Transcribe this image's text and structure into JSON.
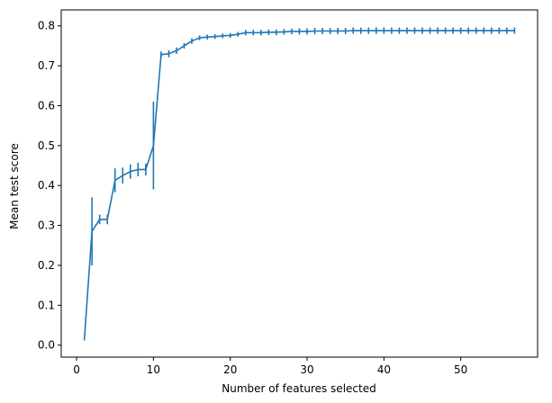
{
  "chart_data": {
    "type": "line",
    "title": "",
    "xlabel": "Number of features selected",
    "ylabel": "Mean test score",
    "xlim": [
      -2,
      60
    ],
    "ylim": [
      -0.03,
      0.84
    ],
    "grid": false,
    "x_ticks": [
      0,
      10,
      20,
      30,
      40,
      50
    ],
    "y_ticks": [
      0.0,
      0.1,
      0.2,
      0.3,
      0.4,
      0.5,
      0.6,
      0.7,
      0.8
    ],
    "color": "#1f77b4",
    "series": [
      {
        "x": [
          1,
          2,
          3,
          4,
          5,
          6,
          7,
          8,
          9,
          10,
          11,
          12,
          13,
          14,
          15,
          16,
          17,
          18,
          19,
          20,
          21,
          22,
          23,
          24,
          25,
          26,
          27,
          28,
          29,
          30,
          31,
          32,
          33,
          34,
          35,
          36,
          37,
          38,
          39,
          40,
          41,
          42,
          43,
          44,
          45,
          46,
          47,
          48,
          49,
          50,
          51,
          52,
          53,
          54,
          55,
          56,
          57
        ],
        "y": [
          0.012,
          0.285,
          0.315,
          0.315,
          0.413,
          0.425,
          0.435,
          0.44,
          0.44,
          0.5,
          0.728,
          0.73,
          0.738,
          0.75,
          0.762,
          0.77,
          0.772,
          0.773,
          0.775,
          0.776,
          0.779,
          0.783,
          0.783,
          0.783,
          0.784,
          0.784,
          0.785,
          0.786,
          0.786,
          0.786,
          0.787,
          0.787,
          0.787,
          0.787,
          0.787,
          0.788,
          0.788,
          0.788,
          0.788,
          0.788,
          0.788,
          0.788,
          0.788,
          0.788,
          0.788,
          0.788,
          0.788,
          0.788,
          0.788,
          0.788,
          0.788,
          0.788,
          0.788,
          0.788,
          0.788,
          0.788,
          0.788
        ],
        "err": [
          0,
          0.085,
          0.012,
          0.012,
          0.03,
          0.02,
          0.018,
          0.017,
          0.015,
          0.11,
          0.008,
          0.009,
          0.008,
          0.007,
          0.007,
          0.006,
          0.006,
          0.006,
          0.006,
          0.006,
          0.006,
          0.007,
          0.007,
          0.007,
          0.007,
          0.007,
          0.007,
          0.007,
          0.008,
          0.008,
          0.008,
          0.008,
          0.008,
          0.008,
          0.008,
          0.008,
          0.008,
          0.008,
          0.008,
          0.008,
          0.008,
          0.008,
          0.008,
          0.008,
          0.008,
          0.008,
          0.008,
          0.008,
          0.008,
          0.008,
          0.008,
          0.008,
          0.008,
          0.008,
          0.008,
          0.008,
          0.008
        ]
      }
    ]
  }
}
